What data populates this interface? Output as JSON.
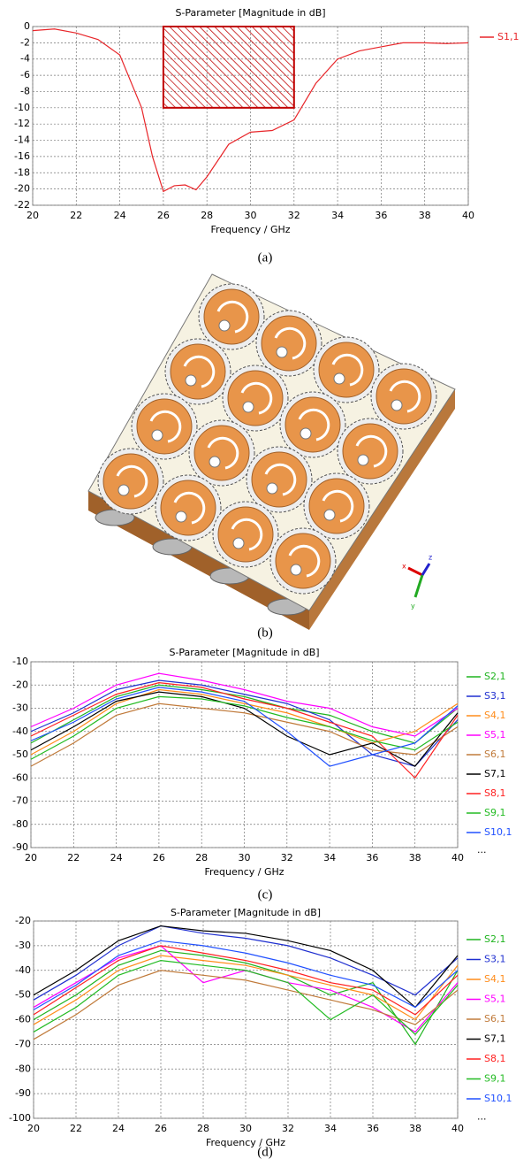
{
  "chart_data": [
    {
      "type": "line",
      "title": "S-Parameter [Magnitude in dB]",
      "x_label": "Frequency / GHz",
      "caption": "(a)",
      "x": [
        20,
        21,
        22,
        23,
        24,
        25,
        25.5,
        26,
        26.5,
        27,
        27.5,
        28,
        29,
        30,
        31,
        32,
        33,
        34,
        35,
        36,
        37,
        38,
        39,
        40
      ],
      "series": [
        {
          "name": "S1,1",
          "color": "#e8262a",
          "values": [
            -0.5,
            -0.3,
            -0.8,
            -1.6,
            -3.5,
            -10,
            -16,
            -20.3,
            -19.6,
            -19.5,
            -20.1,
            -18.5,
            -14.5,
            -13,
            -12.8,
            -11.5,
            -7,
            -4,
            -3,
            -2.5,
            -2,
            -2,
            -2.1,
            -2
          ]
        }
      ],
      "region": {
        "x": [
          26,
          32
        ],
        "y": [
          -10,
          0
        ],
        "color": "#c00000"
      },
      "xlim": [
        20,
        40
      ],
      "xticks": [
        20,
        22,
        24,
        26,
        28,
        30,
        32,
        34,
        36,
        38,
        40
      ],
      "ylim": [
        -22,
        0
      ],
      "yticks": [
        0,
        -2,
        -4,
        -6,
        -8,
        -10,
        -12,
        -14,
        -16,
        -18,
        -20,
        -22
      ],
      "grid": true,
      "legend": "right"
    },
    {
      "type": "line",
      "title": "S-Parameter [Magnitude in dB]",
      "x_label": "Frequency / GHz",
      "caption": "(c)",
      "legend_more": "...",
      "x": [
        20,
        22,
        24,
        26,
        28,
        30,
        32,
        34,
        36,
        38,
        40
      ],
      "series": [
        {
          "name": "S2,1",
          "color": "#1fb41f",
          "values": [
            -45,
            -35,
            -25,
            -20,
            -22,
            -25,
            -30,
            -33,
            -40,
            -45,
            -30
          ]
        },
        {
          "name": "S3,1",
          "color": "#1f2fd0",
          "values": [
            -40,
            -32,
            -22,
            -18,
            -20,
            -24,
            -28,
            -35,
            -50,
            -55,
            -35
          ]
        },
        {
          "name": "S4,1",
          "color": "#ff8c1a",
          "values": [
            -50,
            -40,
            -28,
            -22,
            -24,
            -28,
            -32,
            -38,
            -45,
            -40,
            -28
          ]
        },
        {
          "name": "S5,1",
          "color": "#ff00ff",
          "values": [
            -38,
            -30,
            -20,
            -15,
            -18,
            -22,
            -27,
            -30,
            -38,
            -42,
            -30
          ]
        },
        {
          "name": "S6,1",
          "color": "#c07a3a",
          "values": [
            -55,
            -45,
            -33,
            -28,
            -30,
            -32,
            -36,
            -40,
            -48,
            -50,
            -38
          ]
        },
        {
          "name": "S7,1",
          "color": "#000000",
          "values": [
            -48,
            -38,
            -27,
            -23,
            -25,
            -30,
            -42,
            -50,
            -45,
            -55,
            -32
          ]
        },
        {
          "name": "S8,1",
          "color": "#ff2020",
          "values": [
            -42,
            -33,
            -24,
            -19,
            -21,
            -26,
            -30,
            -36,
            -42,
            -60,
            -33
          ]
        },
        {
          "name": "S9,1",
          "color": "#22bb22",
          "values": [
            -52,
            -42,
            -30,
            -25,
            -26,
            -29,
            -34,
            -38,
            -44,
            -48,
            -36
          ]
        },
        {
          "name": "S10,1",
          "color": "#2050ff",
          "values": [
            -44,
            -36,
            -26,
            -21,
            -23,
            -27,
            -40,
            -55,
            -50,
            -45,
            -29
          ]
        }
      ],
      "xlim": [
        20,
        40
      ],
      "xticks": [
        20,
        22,
        24,
        26,
        28,
        30,
        32,
        34,
        36,
        38,
        40
      ],
      "ylim": [
        -90,
        -10
      ],
      "yticks": [
        -10,
        -20,
        -30,
        -40,
        -50,
        -60,
        -70,
        -80,
        -90
      ],
      "grid": true,
      "legend": "right"
    },
    {
      "type": "line",
      "title": "S-Parameter [Magnitude in dB]",
      "x_label": "Frequency / GHz",
      "caption": "(d)",
      "legend_more": "...",
      "x": [
        20,
        22,
        24,
        26,
        28,
        30,
        32,
        34,
        36,
        38,
        40
      ],
      "series": [
        {
          "name": "S2,1",
          "color": "#1fb41f",
          "values": [
            -60,
            -50,
            -38,
            -32,
            -34,
            -37,
            -42,
            -50,
            -45,
            -70,
            -40
          ]
        },
        {
          "name": "S3,1",
          "color": "#1f2fd0",
          "values": [
            -52,
            -42,
            -30,
            -22,
            -25,
            -27,
            -30,
            -35,
            -42,
            -50,
            -35
          ]
        },
        {
          "name": "S4,1",
          "color": "#ff8c1a",
          "values": [
            -62,
            -52,
            -40,
            -34,
            -36,
            -38,
            -42,
            -46,
            -50,
            -60,
            -38
          ]
        },
        {
          "name": "S5,1",
          "color": "#ff00ff",
          "values": [
            -55,
            -45,
            -35,
            -30,
            -45,
            -40,
            -45,
            -48,
            -55,
            -65,
            -45
          ]
        },
        {
          "name": "S6,1",
          "color": "#c07a3a",
          "values": [
            -68,
            -58,
            -46,
            -40,
            -42,
            -44,
            -48,
            -52,
            -56,
            -62,
            -48
          ]
        },
        {
          "name": "S7,1",
          "color": "#000000",
          "values": [
            -50,
            -40,
            -28,
            -22,
            -24,
            -25,
            -28,
            -32,
            -40,
            -55,
            -34
          ]
        },
        {
          "name": "S8,1",
          "color": "#ff2020",
          "values": [
            -58,
            -47,
            -36,
            -30,
            -33,
            -36,
            -40,
            -45,
            -48,
            -58,
            -42
          ]
        },
        {
          "name": "S9,1",
          "color": "#22bb22",
          "values": [
            -65,
            -55,
            -42,
            -36,
            -38,
            -40,
            -45,
            -60,
            -50,
            -66,
            -46
          ]
        },
        {
          "name": "S10,1",
          "color": "#2050ff",
          "values": [
            -56,
            -46,
            -34,
            -28,
            -30,
            -33,
            -37,
            -42,
            -46,
            -55,
            -40
          ]
        }
      ],
      "xlim": [
        20,
        40
      ],
      "xticks": [
        20,
        22,
        24,
        26,
        28,
        30,
        32,
        34,
        36,
        38,
        40
      ],
      "ylim": [
        -100,
        -20
      ],
      "yticks": [
        -20,
        -30,
        -40,
        -50,
        -60,
        -70,
        -80,
        -90,
        -100
      ],
      "grid": true,
      "legend": "right"
    }
  ],
  "image": {
    "caption": "(b)",
    "axes": [
      "x",
      "y",
      "z"
    ]
  }
}
